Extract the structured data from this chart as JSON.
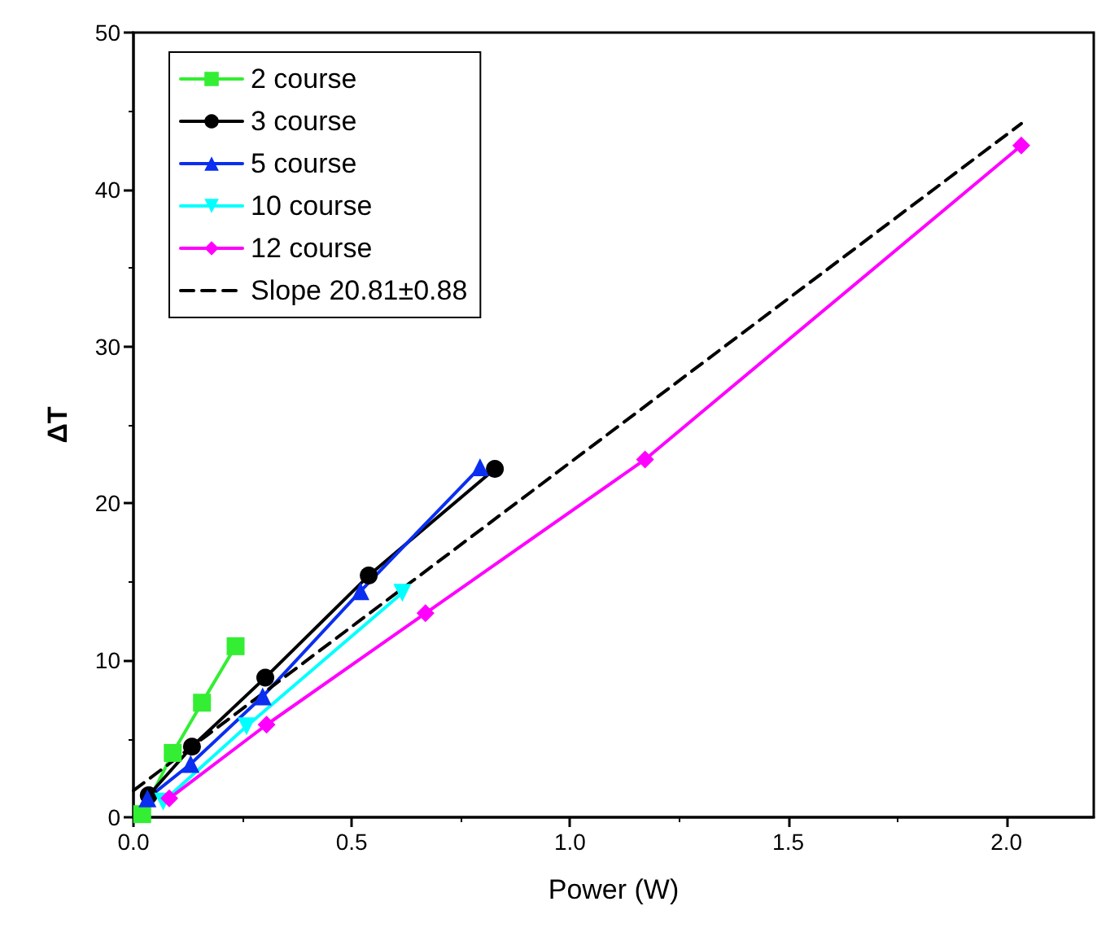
{
  "chart_data": {
    "type": "line",
    "xlabel": "Power (W)",
    "ylabel": "ΔT",
    "xlim": [
      0,
      2.2
    ],
    "xticks": [
      {
        "value": 0,
        "label": "0.0"
      },
      0.5,
      {
        "value": 1,
        "label": "1.0"
      },
      1.5,
      {
        "value": 2,
        "label": "2.0"
      }
    ],
    "ylim": [
      0,
      50
    ],
    "yticks": [
      0,
      10,
      20,
      30,
      40,
      50
    ],
    "grid": false,
    "legend": "top left",
    "line_style": "solid",
    "series": [
      {
        "name": "2 course",
        "color": "#33ee33",
        "marker": "square",
        "x": [
          0.02,
          0.09,
          0.157,
          0.234
        ],
        "values": [
          0.2,
          4.1,
          7.3,
          10.9
        ]
      },
      {
        "name": "3 course",
        "color": "#000000",
        "marker": "circle",
        "x": [
          0.035,
          0.134,
          0.302,
          0.539,
          0.828
        ],
        "values": [
          1.4,
          4.5,
          8.9,
          15.4,
          22.2
        ]
      },
      {
        "name": "5 course",
        "color": "#0a2ff0",
        "marker": "triangle",
        "x": [
          0.032,
          0.131,
          0.296,
          0.52,
          0.794
        ],
        "values": [
          1.2,
          3.4,
          7.7,
          14.4,
          22.3
        ]
      },
      {
        "name": "10 course",
        "color": "#00ffff",
        "marker": "triangle-down",
        "x": [
          0.068,
          0.259,
          0.616
        ],
        "values": [
          1.0,
          5.8,
          14.3
        ]
      },
      {
        "name": "12 course",
        "color": "#ff00ff",
        "marker": "diamond",
        "x": [
          0.082,
          0.305,
          0.669,
          1.172,
          2.034
        ],
        "values": [
          1.2,
          5.9,
          13.0,
          22.8,
          42.8
        ]
      },
      {
        "name": "Slope 20.81±0.88",
        "color": "#000000",
        "marker": "none",
        "line_style": "dashed",
        "x": [
          0.0,
          2.034
        ],
        "values": [
          1.7,
          44.2
        ]
      }
    ]
  }
}
